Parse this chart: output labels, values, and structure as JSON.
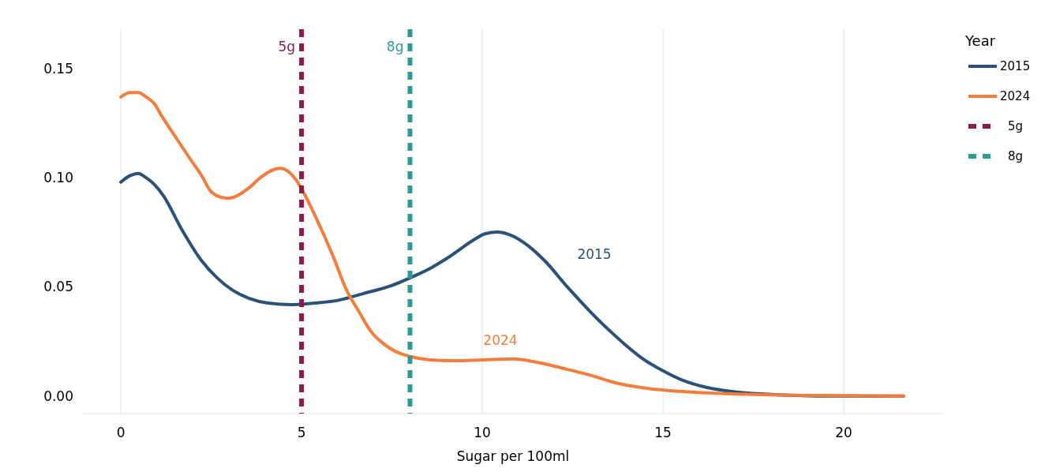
{
  "chart_data": {
    "type": "line",
    "xlabel": "Sugar per 100ml",
    "legend_title": "Year",
    "legend": "right",
    "grid": "x",
    "xlim": [
      -1.05,
      22.75
    ],
    "ylim": [
      -0.008,
      0.168
    ],
    "xticks": [
      0,
      5,
      10,
      15,
      20
    ],
    "yticks": [
      {
        "value": 0,
        "label": "0.00"
      },
      {
        "value": 0.05,
        "label": "0.05"
      },
      {
        "value": 0.1,
        "label": "0.10"
      },
      {
        "value": 0.15,
        "label": "0.15"
      }
    ],
    "series": [
      {
        "name": "2015",
        "color": "#2a5178",
        "x": [
          0,
          0.26,
          0.48,
          0.7,
          0.92,
          1.18,
          1.68,
          2.23,
          2.66,
          3.1,
          3.54,
          4.08,
          4.74,
          5.39,
          6.05,
          6.7,
          7.47,
          8.01,
          8.56,
          9.1,
          9.76,
          10.09,
          10.41,
          10.74,
          11.29,
          11.72,
          12.38,
          12.93,
          13.36,
          13.91,
          14.45,
          15.0,
          15.55,
          16.2,
          16.86,
          17.62,
          18.5,
          19.6,
          21.66
        ],
        "values": [
          0.098,
          0.101,
          0.102,
          0.1,
          0.097,
          0.0917,
          0.0765,
          0.0621,
          0.0542,
          0.0484,
          0.0448,
          0.0426,
          0.0419,
          0.0426,
          0.044,
          0.0469,
          0.0505,
          0.0542,
          0.0585,
          0.0639,
          0.0715,
          0.0744,
          0.0751,
          0.074,
          0.0686,
          0.0621,
          0.0495,
          0.0397,
          0.0325,
          0.0242,
          0.017,
          0.0116,
          0.0072,
          0.004,
          0.0022,
          0.0011,
          0.0004,
          0.0,
          0.0
        ]
      },
      {
        "name": "2024",
        "color": "#f47c3c",
        "x": [
          0,
          0.26,
          0.48,
          0.7,
          0.92,
          1.14,
          1.46,
          1.9,
          2.27,
          2.45,
          2.66,
          2.95,
          3.21,
          3.54,
          3.86,
          4.15,
          4.41,
          4.63,
          4.85,
          5.07,
          5.39,
          5.83,
          6.27,
          6.59,
          6.92,
          7.25,
          7.58,
          8.01,
          8.56,
          9.21,
          9.98,
          10.85,
          11.51,
          12.27,
          13.03,
          13.69,
          14.56,
          15.44,
          16.75,
          18.5,
          21.66
        ],
        "values": [
          0.137,
          0.139,
          0.139,
          0.137,
          0.134,
          0.128,
          0.12,
          0.109,
          0.1,
          0.0946,
          0.0917,
          0.0906,
          0.0917,
          0.0953,
          0.1,
          0.1032,
          0.1043,
          0.1029,
          0.0989,
          0.0928,
          0.082,
          0.0657,
          0.0477,
          0.0386,
          0.0296,
          0.0242,
          0.0206,
          0.0181,
          0.0166,
          0.0162,
          0.0166,
          0.017,
          0.0155,
          0.0126,
          0.0094,
          0.0061,
          0.0036,
          0.0022,
          0.0011,
          0.0004,
          0.0
        ]
      }
    ],
    "ref_lines": [
      {
        "axis": "x",
        "value": 5,
        "label": "5g",
        "color": "#8b1a4f",
        "line_style": "dashed"
      },
      {
        "axis": "x",
        "value": 8,
        "label": "8g",
        "color": "#2a9d8f",
        "line_style": "dashed"
      }
    ]
  }
}
